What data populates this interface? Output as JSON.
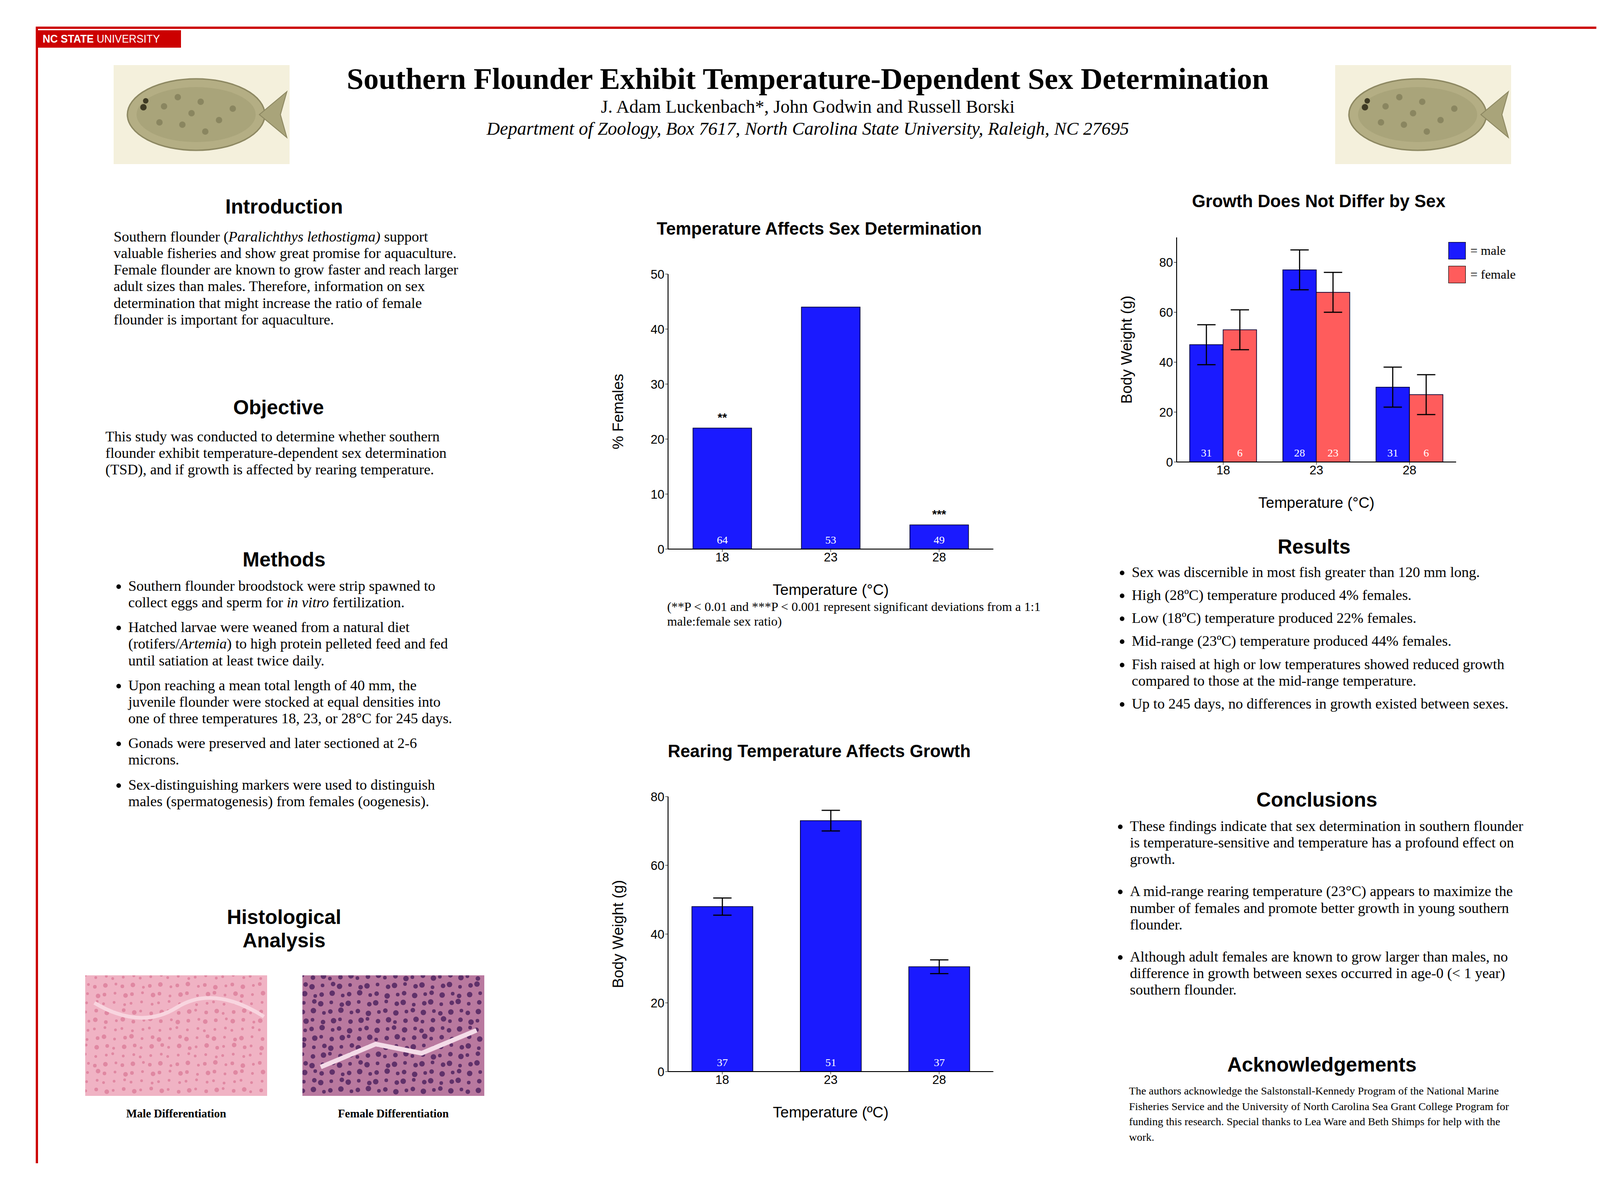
{
  "header": {
    "badge": [
      "NC STATE",
      "UNIVERSITY"
    ],
    "title": "Southern Flounder Exhibit Temperature-Dependent Sex Determination",
    "authors": "J. Adam Luckenbach*, John Godwin and Russell Borski",
    "affiliation": "Department of Zoology, Box 7617, North Carolina State University, Raleigh, NC 27695"
  },
  "introduction": {
    "heading": "Introduction",
    "paragraph": [
      "Southern flounder (",
      {
        "italic": "Paralichthys lethostigma)"
      },
      " support valuable fisheries and show great promise for aquaculture.  Female flounder are known to grow faster and reach larger adult sizes than males. Therefore, information on sex determination that might increase the ratio of female flounder is important for aquaculture."
    ]
  },
  "objective": {
    "heading": "Objective",
    "paragraph": [
      "This study was conducted to determine whether southern flounder exhibit temperature-dependent sex determination (TSD), and if growth is affected by rearing temperature."
    ]
  },
  "methods": {
    "heading": "Methods",
    "bullets": [
      [
        "Southern flounder broodstock were strip spawned to collect eggs and sperm for ",
        {
          "italic": "in vitro"
        },
        " fertilization."
      ],
      [
        "Hatched larvae were weaned from a natural diet (rotifers/",
        {
          "italic": "Artemia"
        },
        ") to high protein pelleted feed and fed until satiation at least twice daily."
      ],
      [
        "Upon reaching a mean total length of 40 mm, the juvenile flounder were stocked at equal densities into one of three temperatures 18, 23, or 28°C for 245 days."
      ],
      [
        "Gonads were preserved and later sectioned at 2-6 microns."
      ],
      [
        "Sex-distinguishing markers were used to distinguish males (spermatogenesis) from females (oogenesis)."
      ]
    ]
  },
  "histology": {
    "heading": "Histological Analysis",
    "captions": [
      "Male Differentiation",
      "Female Differentiation"
    ]
  },
  "results": {
    "heading": "Results",
    "bullets": [
      "Sex was discernible in most fish greater than 120 mm long.",
      "High (28ºC) temperature produced 4% females.",
      "Low (18ºC) temperature produced 22% females.",
      "Mid-range (23ºC) temperature produced 44% females.",
      "Fish raised at high or low temperatures showed reduced growth compared to those at the mid-range temperature.",
      "Up to 245 days, no differences in growth existed between sexes."
    ]
  },
  "conclusions": {
    "heading": "Conclusions",
    "bullets": [
      "These findings indicate that sex determination in southern flounder is temperature-sensitive and temperature has a profound effect on growth.",
      "A mid-range rearing temperature (23°C) appears to maximize the number of females and promote better growth in young southern flounder.",
      "Although adult females are known to grow larger than males, no difference in growth between sexes occurred in age-0 (< 1 year) southern flounder."
    ]
  },
  "acknowledgements": {
    "heading": "Acknowledgements",
    "text": "The authors acknowledge the Salstonstall-Kennedy Program of the National Marine Fisheries Service and the University of North Carolina Sea Grant College Program for funding this research.  Special thanks to Lea Ware and Beth Shimps for help with the work."
  },
  "chart_data": [
    {
      "type": "bar",
      "title": "Temperature Affects Sex Determination",
      "xlabel": "Temperature (°C)",
      "ylabel": "% Females",
      "categories": [
        "18",
        "23",
        "28"
      ],
      "values": [
        22,
        44,
        4.4
      ],
      "n": [
        64,
        53,
        49
      ],
      "significance": [
        "**",
        null,
        "***"
      ],
      "color": "#1a1aff",
      "ylim": [
        0,
        50
      ],
      "yticks": [
        0,
        10,
        20,
        30,
        40,
        50
      ],
      "grid": false,
      "note": "(**P < 0.01 and ***P < 0.001 represent significant deviations from a 1:1 male:female sex ratio)"
    },
    {
      "type": "bar",
      "title": "Rearing Temperature Affects Growth",
      "xlabel": "Temperature (ºC)",
      "ylabel": "Body Weight (g)",
      "categories": [
        "18",
        "23",
        "28"
      ],
      "values": [
        48,
        73,
        30.5
      ],
      "errors": [
        2.5,
        3,
        2
      ],
      "n": [
        37,
        51,
        37
      ],
      "color": "#1a1aff",
      "ylim": [
        0,
        80
      ],
      "yticks": [
        0,
        20,
        40,
        60,
        80
      ],
      "grid": false
    },
    {
      "type": "bar",
      "title": "Growth Does Not Differ by Sex",
      "xlabel": "Temperature (°C)",
      "ylabel": "Body Weight (g)",
      "categories": [
        "18",
        "23",
        "28"
      ],
      "series": [
        {
          "name": "= male",
          "color": "#1a1aff",
          "values": [
            47,
            77,
            30
          ],
          "errors": [
            8,
            8,
            8
          ],
          "n": [
            31,
            28,
            31
          ]
        },
        {
          "name": "= female",
          "color": "#ff5c5c",
          "values": [
            53,
            68,
            27
          ],
          "errors": [
            8,
            8,
            8
          ],
          "n": [
            6,
            23,
            6
          ]
        }
      ],
      "ylim": [
        0,
        90
      ],
      "yticks": [
        0,
        20,
        40,
        60,
        80
      ],
      "grid": false,
      "legend": "upper right"
    }
  ]
}
